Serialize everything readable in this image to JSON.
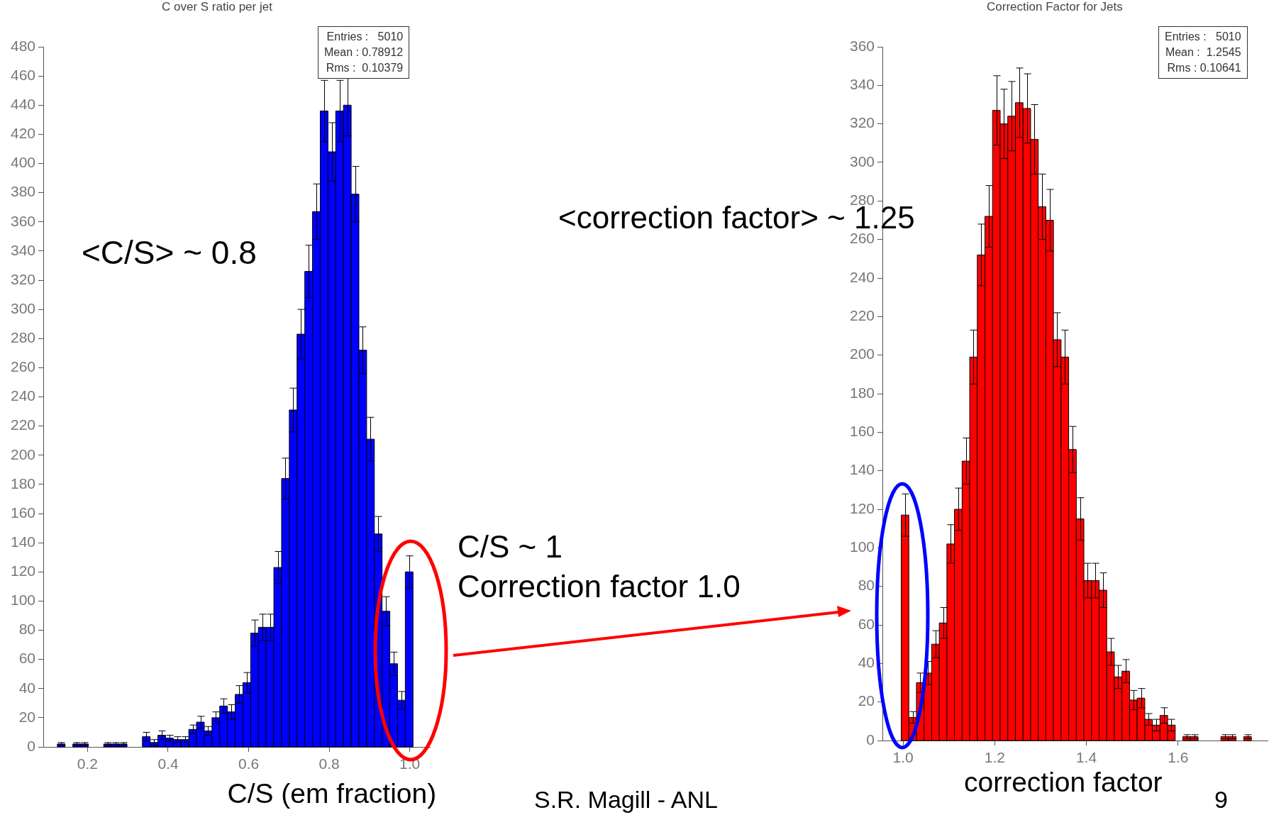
{
  "chart_data": [
    {
      "type": "histogram",
      "title": "C over S ratio per jet",
      "xlabel": "C/S (em fraction)",
      "color": "#0000ff",
      "bins": [
        0.125,
        0.1442,
        0.1634,
        0.1826,
        0.2018,
        0.221,
        0.2402,
        0.2594,
        0.2786,
        0.2978,
        0.317,
        0.3362,
        0.3554,
        0.3746,
        0.3938,
        0.413,
        0.4322,
        0.4514,
        0.4706,
        0.4898,
        0.509,
        0.5282,
        0.5474,
        0.5666,
        0.5858,
        0.605,
        0.6242,
        0.6434,
        0.6626,
        0.6818,
        0.701,
        0.7202,
        0.7394,
        0.7586,
        0.7778,
        0.797,
        0.8162,
        0.8354,
        0.8546,
        0.8738,
        0.893,
        0.9122,
        0.9314,
        0.9506,
        0.9698,
        0.989,
        1.0082
      ],
      "values": [
        2,
        0,
        2,
        2,
        0,
        0,
        2,
        2,
        2,
        0,
        0,
        7,
        3,
        8,
        6,
        5,
        5,
        12,
        17,
        11,
        20,
        28,
        24,
        36,
        44,
        78,
        82,
        82,
        123,
        184,
        231,
        283,
        326,
        367,
        436,
        408,
        436,
        440,
        379,
        272,
        211,
        146,
        93,
        57,
        32,
        120
      ],
      "errors": [
        1,
        null,
        1,
        1,
        null,
        null,
        1,
        1,
        1,
        null,
        null,
        3,
        2,
        3,
        2,
        2,
        2,
        3,
        4,
        3,
        4,
        5,
        5,
        6,
        7,
        9,
        9,
        9,
        11,
        14,
        15,
        17,
        18,
        19,
        21,
        20,
        21,
        21,
        19,
        16,
        15,
        12,
        10,
        8,
        6,
        11
      ],
      "xlim": [
        0.09,
        1.05
      ],
      "xticks": [
        0.2,
        0.4,
        0.6,
        0.8,
        {
          "value": 1,
          "label": "1.0"
        }
      ],
      "ylim": [
        0,
        480
      ],
      "yticks": [
        0,
        20,
        40,
        60,
        80,
        100,
        120,
        140,
        160,
        180,
        200,
        220,
        240,
        260,
        280,
        300,
        320,
        340,
        360,
        380,
        400,
        420,
        440,
        460,
        480
      ],
      "annotations": [
        "Entries :   5010",
        "Mean : 0.78912",
        "Rms :  0.10379",
        "<C/S> ~ 0.8",
        "C/S ~ 1",
        "Correction factor 1.0"
      ]
    },
    {
      "type": "histogram",
      "title": "Correction Factor for Jets",
      "xlabel": "correction factor",
      "color": "#ff0000",
      "bins": [
        0.996,
        1.0126,
        1.0292,
        1.0458,
        1.0624,
        1.079,
        1.0956,
        1.1122,
        1.1288,
        1.1454,
        1.162,
        1.1786,
        1.1952,
        1.2118,
        1.2284,
        1.245,
        1.2616,
        1.2782,
        1.2948,
        1.3114,
        1.328,
        1.3446,
        1.3612,
        1.3778,
        1.3944,
        1.411,
        1.4276,
        1.4442,
        1.4608,
        1.4774,
        1.494,
        1.5106,
        1.5272,
        1.5438,
        1.5604,
        1.577,
        1.5936,
        1.6102,
        1.6268,
        1.6434,
        1.66,
        1.6766,
        1.6932,
        1.7098,
        1.7264,
        1.743,
        1.7596
      ],
      "values": [
        117,
        12,
        30,
        35,
        50,
        61,
        102,
        120,
        145,
        199,
        252,
        272,
        327,
        320,
        324,
        331,
        328,
        312,
        277,
        270,
        208,
        199,
        151,
        115,
        83,
        83,
        78,
        46,
        33,
        36,
        21,
        22,
        11,
        8,
        13,
        8,
        0,
        2,
        2,
        0,
        0,
        0,
        2,
        2,
        0,
        2
      ],
      "errors": [
        11,
        3,
        5,
        6,
        7,
        8,
        10,
        11,
        12,
        14,
        16,
        16,
        18,
        18,
        18,
        18,
        18,
        18,
        17,
        16,
        14,
        14,
        12,
        11,
        9,
        9,
        9,
        7,
        6,
        6,
        5,
        5,
        3,
        3,
        4,
        3,
        null,
        1,
        1,
        null,
        null,
        null,
        1,
        1,
        null,
        1
      ],
      "xlim": [
        0.955,
        1.795
      ],
      "xticks": [
        {
          "value": 1,
          "label": "1.0"
        },
        1.2,
        1.4,
        1.6
      ],
      "ylim": [
        0,
        360
      ],
      "yticks": [
        0,
        20,
        40,
        60,
        80,
        100,
        120,
        140,
        160,
        180,
        200,
        220,
        240,
        260,
        280,
        300,
        320,
        340,
        360
      ],
      "annotations": [
        "Entries :   5010",
        "Mean :  1.2545",
        "Rms : 0.10641",
        "<correction factor> ~ 1.25",
        "S.R. Magill - ANL",
        "9"
      ]
    }
  ]
}
